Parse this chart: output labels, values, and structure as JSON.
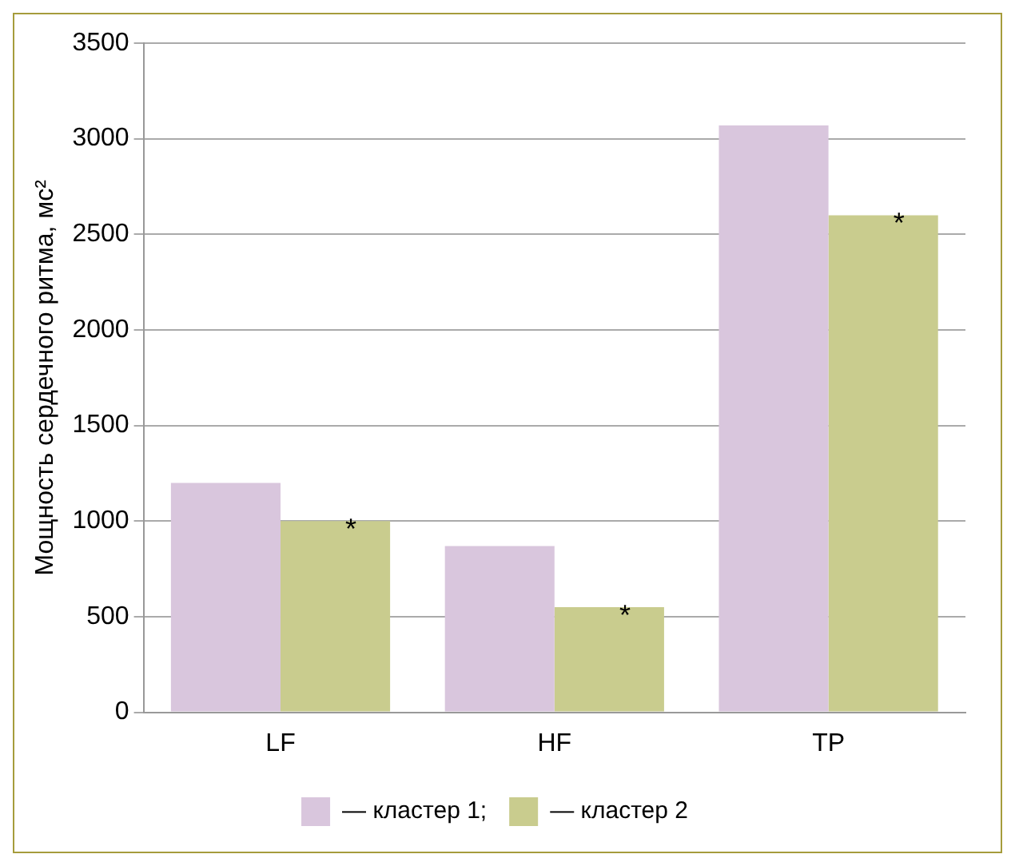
{
  "chart_data": {
    "type": "bar",
    "ylabel": "Мощность сердечного ритма, мс²",
    "categories": [
      "LF",
      "HF",
      "TP"
    ],
    "series": [
      {
        "name": "— кластер 1;",
        "color": "#d9c6dd",
        "values": [
          1200,
          870,
          3070
        ]
      },
      {
        "name": "— кластер 2",
        "color": "#c9cc8e",
        "values": [
          1000,
          550,
          2600
        ]
      }
    ],
    "ylim": [
      0,
      3500
    ],
    "yticks": [
      0,
      500,
      1000,
      1500,
      2000,
      2500,
      3000,
      3500
    ],
    "grid": "y",
    "legend": "bottom",
    "annotations": [
      {
        "text": "*",
        "x": "LF",
        "y": 1000
      },
      {
        "text": "*",
        "x": "HF",
        "y": 550
      },
      {
        "text": "*",
        "x": "TP",
        "y": 2600
      }
    ]
  }
}
